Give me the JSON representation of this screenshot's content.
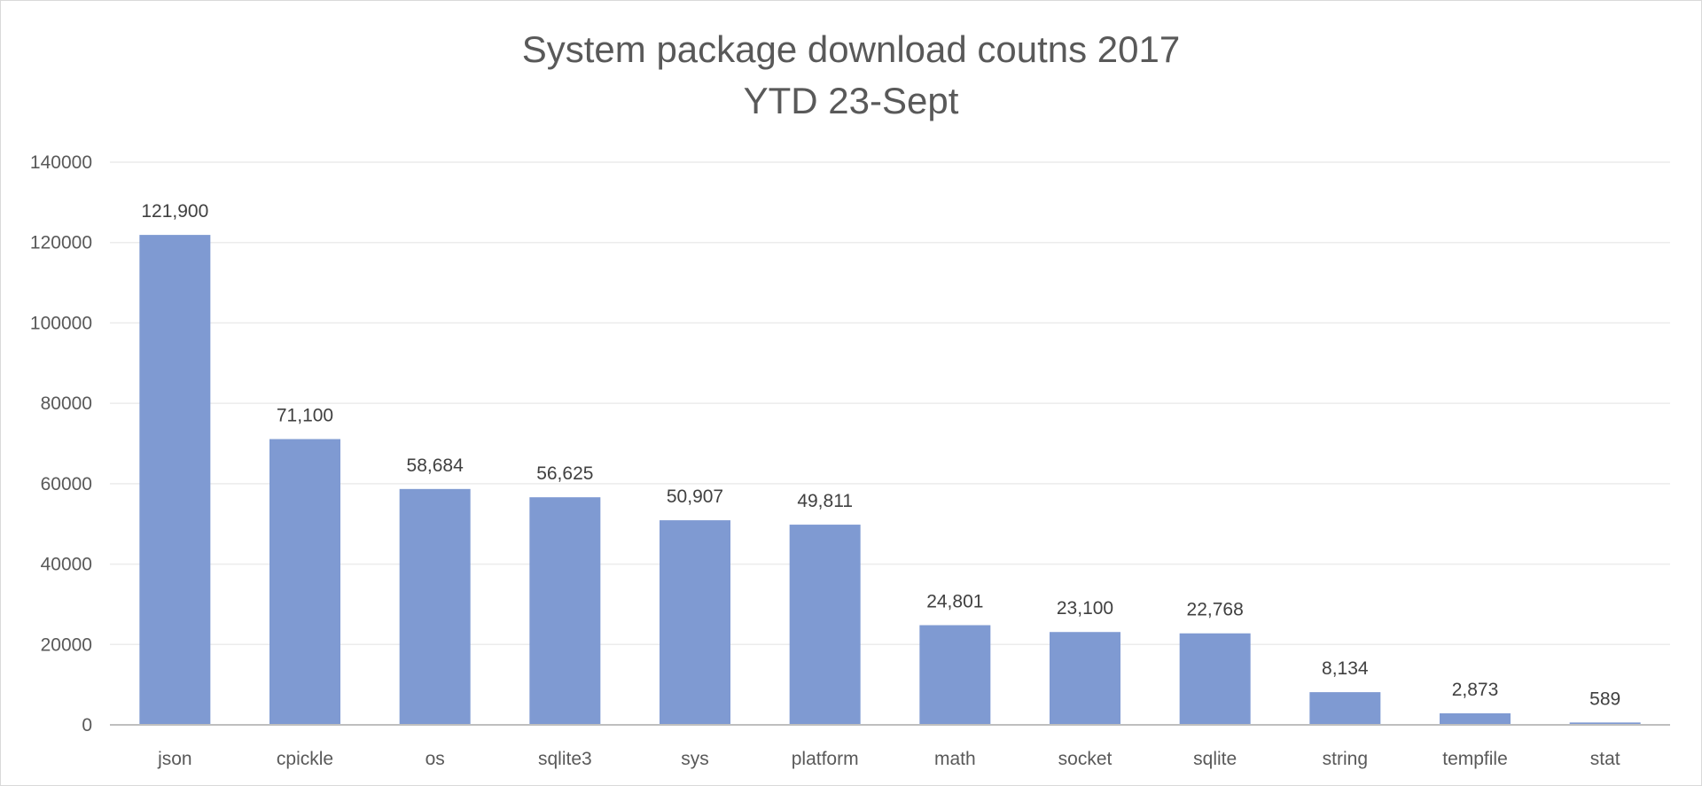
{
  "chart_data": {
    "type": "bar",
    "title": "System package download coutns 2017",
    "subtitle": "YTD 23-Sept",
    "xlabel": "",
    "ylabel": "",
    "categories": [
      "json",
      "cpickle",
      "os",
      "sqlite3",
      "sys",
      "platform",
      "math",
      "socket",
      "sqlite",
      "string",
      "tempfile",
      "stat"
    ],
    "values": [
      121900,
      71100,
      58684,
      56625,
      50907,
      49811,
      24801,
      23100,
      22768,
      8134,
      2873,
      589
    ],
    "data_labels": [
      "121,900",
      "71,100",
      "58,684",
      "56,625",
      "50,907",
      "49,811",
      "24,801",
      "23,100",
      "22,768",
      "8,134",
      "2,873",
      "589"
    ],
    "ylim": [
      0,
      140000
    ],
    "yticks": [
      0,
      20000,
      40000,
      60000,
      80000,
      100000,
      120000,
      140000
    ],
    "ytick_labels": [
      "0",
      "20000",
      "40000",
      "60000",
      "80000",
      "100000",
      "120000",
      "140000"
    ],
    "grid": true,
    "legend": "none",
    "colors": {
      "bar": "#7f9ad2",
      "grid": "#ececec",
      "axis": "#bfbfbf",
      "text": "#595959"
    }
  }
}
